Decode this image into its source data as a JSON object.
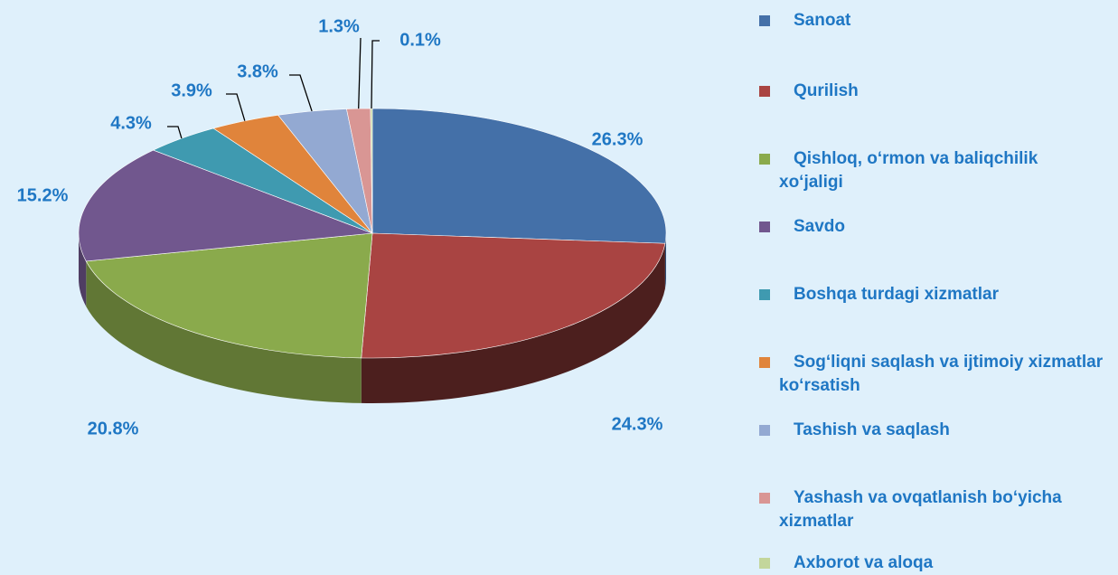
{
  "chart_data": {
    "type": "pie",
    "categories": [
      "Sanoat",
      "Qurilish",
      "Qishloq, o‘rmon va baliqchilik xo‘jaligi",
      "Savdo",
      "Boshqa turdagi xizmatlar",
      "Sog‘liqni saqlash va ijtimoiy xizmatlar ko‘rsatish",
      "Tashish va saqlash",
      "Yashash va ovqatlanish bo‘yicha xizmatlar",
      "Axborot va aloqa"
    ],
    "values": [
      26.3,
      24.3,
      20.8,
      15.2,
      4.3,
      3.9,
      3.8,
      1.3,
      0.1
    ],
    "value_labels": [
      "26.3%",
      "24.3%",
      "20.8%",
      "15.2%",
      "4.3%",
      "3.9%",
      "3.8%",
      "1.3%",
      "0.1%"
    ],
    "colors": [
      "#4470a8",
      "#a94442",
      "#8aaa4c",
      "#71578e",
      "#3f9ab0",
      "#e0843b",
      "#93a9d2",
      "#d99694",
      "#c3d69b"
    ]
  }
}
